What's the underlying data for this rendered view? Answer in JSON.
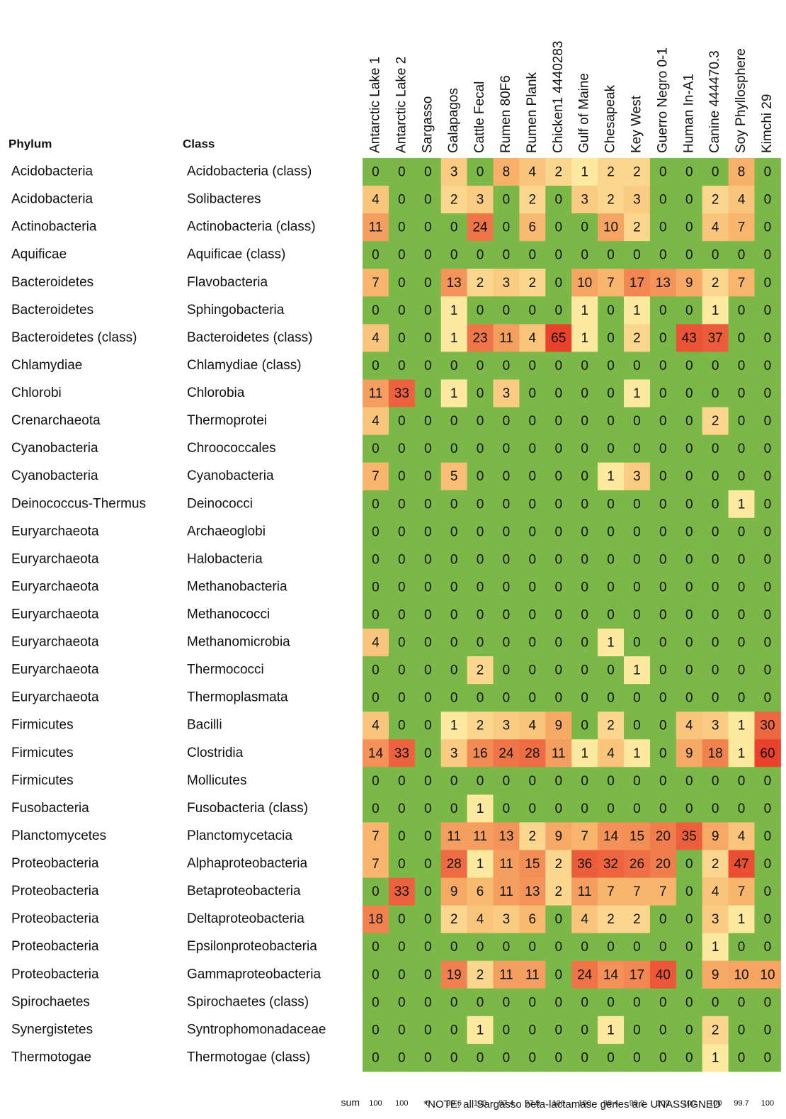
{
  "table": {
    "header": {
      "phylum": "Phylum",
      "class": "Class"
    },
    "columns": [
      "Antarctic Lake 1",
      "Antarctic Lake 2",
      "Sargasso",
      "Galapagos",
      "Cattle Fecal",
      "Rumen 80F6",
      "Rumen Plank",
      "Chicken1 4440283",
      "Gulf of Maine",
      "Chesapeak",
      "Key West",
      "Guerro Negro 0-1",
      "Human In-A1",
      "Canine 444470.3",
      "Soy Phyllosphere",
      "Kimchi 29"
    ],
    "rows": [
      {
        "phylum": "Acidobacteria",
        "class": "Acidobacteria (class)",
        "values": [
          0,
          0,
          0,
          3,
          0,
          8,
          4,
          2,
          1,
          2,
          2,
          0,
          0,
          0,
          8,
          0
        ]
      },
      {
        "phylum": "Acidobacteria",
        "class": "Solibacteres",
        "values": [
          4,
          0,
          0,
          2,
          3,
          0,
          2,
          0,
          3,
          2,
          3,
          0,
          0,
          2,
          4,
          0
        ]
      },
      {
        "phylum": "Actinobacteria",
        "class": "Actinobacteria (class)",
        "values": [
          11,
          0,
          0,
          0,
          24,
          0,
          6,
          0,
          0,
          10,
          2,
          0,
          0,
          4,
          7,
          0
        ]
      },
      {
        "phylum": "Aquificae",
        "class": "Aquificae (class)",
        "values": [
          0,
          0,
          0,
          0,
          0,
          0,
          0,
          0,
          0,
          0,
          0,
          0,
          0,
          0,
          0,
          0
        ]
      },
      {
        "phylum": "Bacteroidetes",
        "class": "Flavobacteria",
        "values": [
          7,
          0,
          0,
          13,
          2,
          3,
          2,
          0,
          10,
          7,
          17,
          13,
          9,
          2,
          7,
          0
        ]
      },
      {
        "phylum": "Bacteroidetes",
        "class": "Sphingobacteria",
        "values": [
          0,
          0,
          0,
          1,
          0,
          0,
          0,
          0,
          1,
          0,
          1,
          0,
          0,
          1,
          0,
          0
        ]
      },
      {
        "phylum": "Bacteroidetes (class)",
        "class": "Bacteroidetes (class)",
        "values": [
          4,
          0,
          0,
          1,
          23,
          11,
          4,
          65,
          1,
          0,
          2,
          0,
          43,
          37,
          0,
          0
        ]
      },
      {
        "phylum": "Chlamydiae",
        "class": "Chlamydiae (class)",
        "values": [
          0,
          0,
          0,
          0,
          0,
          0,
          0,
          0,
          0,
          0,
          0,
          0,
          0,
          0,
          0,
          0
        ]
      },
      {
        "phylum": "Chlorobi",
        "class": "Chlorobia",
        "values": [
          11,
          33,
          0,
          1,
          0,
          3,
          0,
          0,
          0,
          0,
          1,
          0,
          0,
          0,
          0,
          0
        ]
      },
      {
        "phylum": "Crenarchaeota",
        "class": "Thermoprotei",
        "values": [
          4,
          0,
          0,
          0,
          0,
          0,
          0,
          0,
          0,
          0,
          0,
          0,
          0,
          2,
          0,
          0
        ]
      },
      {
        "phylum": "Cyanobacteria",
        "class": "Chroococcales",
        "values": [
          0,
          0,
          0,
          0,
          0,
          0,
          0,
          0,
          0,
          0,
          0,
          0,
          0,
          0,
          0,
          0
        ]
      },
      {
        "phylum": "Cyanobacteria",
        "class": "Cyanobacteria",
        "values": [
          7,
          0,
          0,
          5,
          0,
          0,
          0,
          0,
          0,
          1,
          3,
          0,
          0,
          0,
          0,
          0
        ]
      },
      {
        "phylum": "Deinococcus-Thermus",
        "class": "Deinococci",
        "values": [
          0,
          0,
          0,
          0,
          0,
          0,
          0,
          0,
          0,
          0,
          0,
          0,
          0,
          0,
          1,
          0
        ]
      },
      {
        "phylum": "Euryarchaeota",
        "class": "Archaeoglobi",
        "values": [
          0,
          0,
          0,
          0,
          0,
          0,
          0,
          0,
          0,
          0,
          0,
          0,
          0,
          0,
          0,
          0
        ]
      },
      {
        "phylum": "Euryarchaeota",
        "class": "Halobacteria",
        "values": [
          0,
          0,
          0,
          0,
          0,
          0,
          0,
          0,
          0,
          0,
          0,
          0,
          0,
          0,
          0,
          0
        ]
      },
      {
        "phylum": "Euryarchaeota",
        "class": "Methanobacteria",
        "values": [
          0,
          0,
          0,
          0,
          0,
          0,
          0,
          0,
          0,
          0,
          0,
          0,
          0,
          0,
          0,
          0
        ]
      },
      {
        "phylum": "Euryarchaeota",
        "class": "Methanococci",
        "values": [
          0,
          0,
          0,
          0,
          0,
          0,
          0,
          0,
          0,
          0,
          0,
          0,
          0,
          0,
          0,
          0
        ]
      },
      {
        "phylum": "Euryarchaeota",
        "class": "Methanomicrobia",
        "values": [
          4,
          0,
          0,
          0,
          0,
          0,
          0,
          0,
          0,
          1,
          0,
          0,
          0,
          0,
          0,
          0
        ]
      },
      {
        "phylum": "Euryarchaeota",
        "class": "Thermococci",
        "values": [
          0,
          0,
          0,
          0,
          2,
          0,
          0,
          0,
          0,
          0,
          1,
          0,
          0,
          0,
          0,
          0
        ]
      },
      {
        "phylum": "Euryarchaeota",
        "class": "Thermoplasmata",
        "values": [
          0,
          0,
          0,
          0,
          0,
          0,
          0,
          0,
          0,
          0,
          0,
          0,
          0,
          0,
          0,
          0
        ]
      },
      {
        "phylum": "Firmicutes",
        "class": "Bacilli",
        "values": [
          4,
          0,
          0,
          1,
          2,
          3,
          4,
          9,
          0,
          2,
          0,
          0,
          4,
          3,
          1,
          30
        ]
      },
      {
        "phylum": "Firmicutes",
        "class": "Clostridia",
        "values": [
          14,
          33,
          0,
          3,
          16,
          24,
          28,
          11,
          1,
          4,
          1,
          0,
          9,
          18,
          1,
          60
        ]
      },
      {
        "phylum": "Firmicutes",
        "class": "Mollicutes",
        "values": [
          0,
          0,
          0,
          0,
          0,
          0,
          0,
          0,
          0,
          0,
          0,
          0,
          0,
          0,
          0,
          0
        ]
      },
      {
        "phylum": "Fusobacteria",
        "class": "Fusobacteria (class)",
        "values": [
          0,
          0,
          0,
          0,
          1,
          0,
          0,
          0,
          0,
          0,
          0,
          0,
          0,
          0,
          0,
          0
        ]
      },
      {
        "phylum": "Planctomycetes",
        "class": "Planctomycetacia",
        "values": [
          7,
          0,
          0,
          11,
          11,
          13,
          2,
          9,
          7,
          14,
          15,
          20,
          35,
          9,
          4,
          0
        ]
      },
      {
        "phylum": "Proteobacteria",
        "class": "Alphaproteobacteria",
        "values": [
          7,
          0,
          0,
          28,
          1,
          11,
          15,
          2,
          36,
          32,
          26,
          20,
          0,
          2,
          47,
          0
        ]
      },
      {
        "phylum": "Proteobacteria",
        "class": "Betaproteobacteria",
        "values": [
          0,
          33,
          0,
          9,
          6,
          11,
          13,
          2,
          11,
          7,
          7,
          7,
          0,
          4,
          7,
          0
        ]
      },
      {
        "phylum": "Proteobacteria",
        "class": "Deltaproteobacteria",
        "values": [
          18,
          0,
          0,
          2,
          4,
          3,
          6,
          0,
          4,
          2,
          2,
          0,
          0,
          3,
          1,
          0
        ]
      },
      {
        "phylum": "Proteobacteria",
        "class": "Epsilonproteobacteria",
        "values": [
          0,
          0,
          0,
          0,
          0,
          0,
          0,
          0,
          0,
          0,
          0,
          0,
          0,
          1,
          0,
          0
        ]
      },
      {
        "phylum": "Proteobacteria",
        "class": "Gammaproteobacteria",
        "values": [
          0,
          0,
          0,
          19,
          2,
          11,
          11,
          0,
          24,
          14,
          17,
          40,
          0,
          9,
          10,
          10
        ]
      },
      {
        "phylum": "Spirochaetes",
        "class": "Spirochaetes (class)",
        "values": [
          0,
          0,
          0,
          0,
          0,
          0,
          0,
          0,
          0,
          0,
          0,
          0,
          0,
          0,
          0,
          0
        ]
      },
      {
        "phylum": "Synergistetes",
        "class": "Syntrophomonadaceae",
        "values": [
          0,
          0,
          0,
          0,
          1,
          0,
          0,
          0,
          0,
          1,
          0,
          0,
          0,
          2,
          0,
          0
        ]
      },
      {
        "phylum": "Thermotogae",
        "class": "Thermotogae (class)",
        "values": [
          0,
          0,
          0,
          0,
          0,
          0,
          0,
          0,
          0,
          0,
          0,
          0,
          0,
          1,
          0,
          0
        ]
      }
    ],
    "sum_label": "sum",
    "sums": [
      100,
      100,
      0,
      99.6,
      100,
      97.4,
      97.9,
      100,
      100,
      99.4,
      99.2,
      100,
      100,
      100,
      99.7,
      100
    ],
    "note": "*NOTE: all Sargasso beta-lactamase genes are UNASSIGNED",
    "zero_color": "#7cb848",
    "scale_colors": [
      "#fde9a0",
      "#f7b26a",
      "#e8412c"
    ]
  }
}
